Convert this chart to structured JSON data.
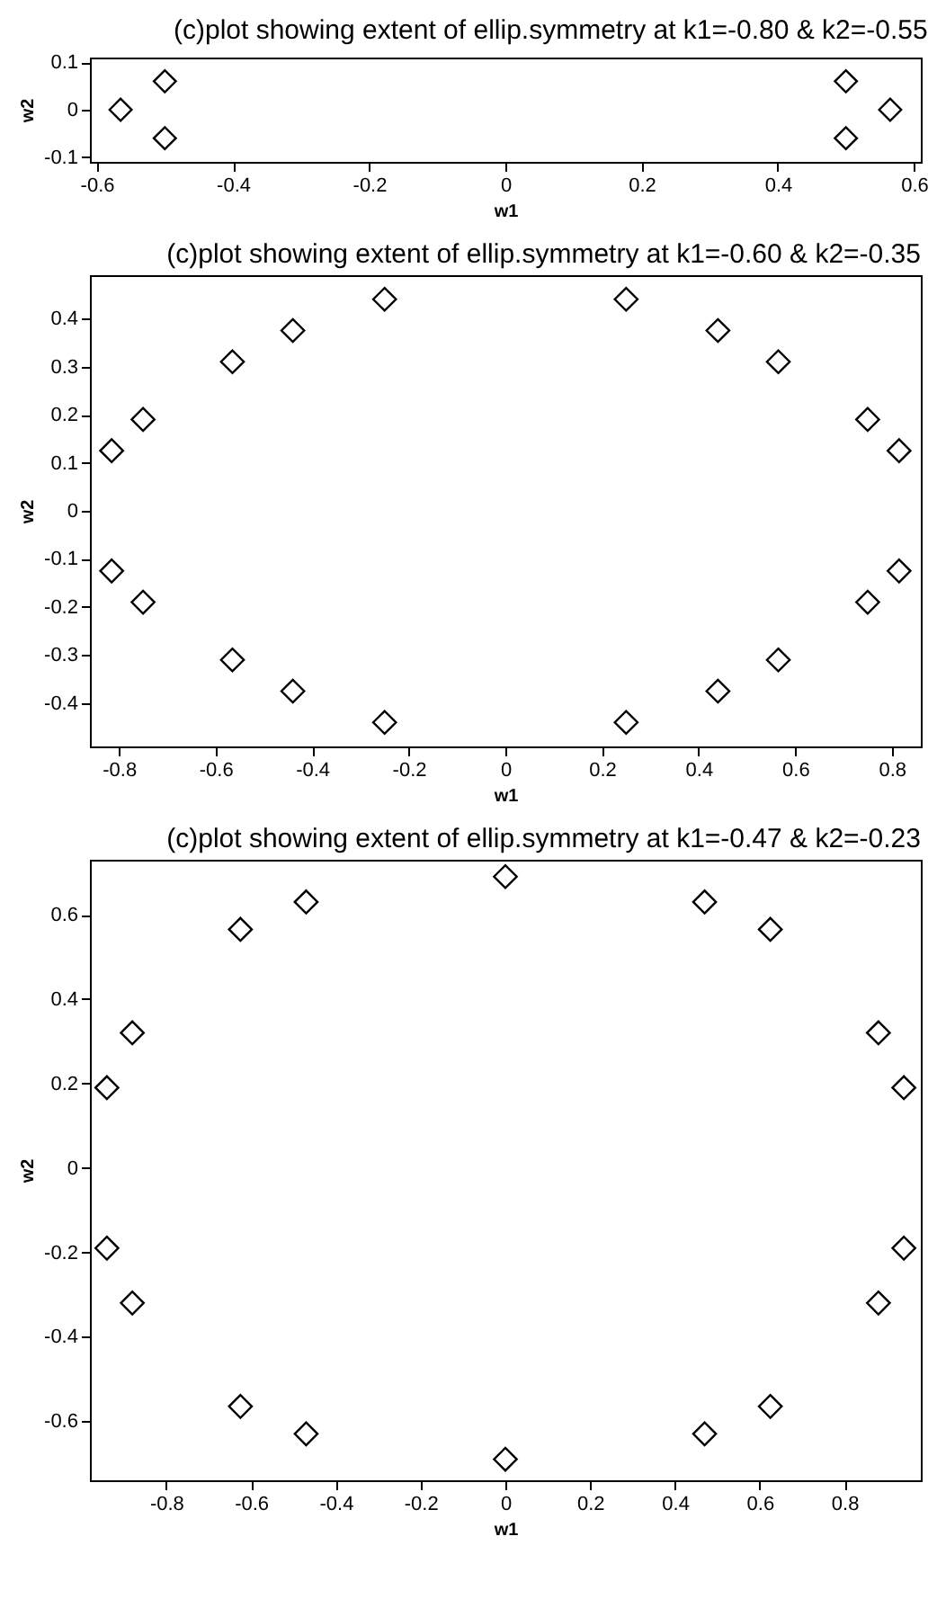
{
  "chart_data": [
    {
      "type": "scatter",
      "title": "(c)plot showing extent of ellip.symmetry at k1=-0.80 & k2=-0.55",
      "xlabel": "w1",
      "ylabel": "w2",
      "marker": "diamond",
      "grid": false,
      "xlim": [
        -0.61,
        0.61
      ],
      "ylim": [
        -0.11,
        0.11
      ],
      "xticks": [
        -0.6,
        -0.4,
        -0.2,
        0,
        0.2,
        0.4,
        0.6
      ],
      "yticks": [
        -0.1,
        0,
        0.1
      ],
      "series": [
        {
          "color": "#000000",
          "x": [
            -0.565,
            -0.5,
            -0.5,
            0.5,
            0.5,
            0.565
          ],
          "values": [
            0,
            0.06,
            -0.06,
            0.06,
            -0.06,
            0
          ]
        }
      ]
    },
    {
      "type": "scatter",
      "title": "(c)plot showing extent of ellip.symmetry at k1=-0.60 & k2=-0.35",
      "xlabel": "w1",
      "ylabel": "w2",
      "marker": "diamond",
      "grid": false,
      "xlim": [
        -0.86,
        0.86
      ],
      "ylim": [
        -0.49,
        0.49
      ],
      "xticks": [
        -0.8,
        -0.6,
        -0.4,
        -0.2,
        0,
        0.2,
        0.4,
        0.6,
        0.8
      ],
      "yticks": [
        -0.4,
        -0.3,
        -0.2,
        -0.1,
        0,
        0.1,
        0.2,
        0.3,
        0.4
      ],
      "series": [
        {
          "color": "#000000",
          "x": [
            -0.25,
            0.25,
            -0.44,
            0.44,
            -0.565,
            0.565,
            -0.75,
            0.75,
            -0.815,
            0.815,
            -0.25,
            0.25,
            -0.44,
            0.44,
            -0.565,
            0.565,
            -0.75,
            0.75,
            -0.815,
            0.815
          ],
          "values": [
            0.44,
            0.44,
            0.375,
            0.375,
            0.31,
            0.31,
            0.19,
            0.19,
            0.125,
            0.125,
            -0.44,
            -0.44,
            -0.375,
            -0.375,
            -0.31,
            -0.31,
            -0.19,
            -0.19,
            -0.125,
            -0.125
          ]
        }
      ]
    },
    {
      "type": "scatter",
      "title": "(c)plot showing extent of ellip.symmetry at k1=-0.47 & k2=-0.23",
      "xlabel": "w1",
      "ylabel": "w2",
      "marker": "diamond",
      "grid": false,
      "xlim": [
        -0.98,
        0.98
      ],
      "ylim": [
        -0.74,
        0.73
      ],
      "xticks": [
        -0.8,
        -0.6,
        -0.4,
        -0.2,
        0,
        0.2,
        0.4,
        0.6,
        0.8
      ],
      "yticks": [
        -0.6,
        -0.4,
        -0.2,
        0,
        0.2,
        0.4,
        0.6
      ],
      "series": [
        {
          "color": "#000000",
          "x": [
            0,
            -0.47,
            0.47,
            -0.625,
            0.625,
            -0.88,
            0.88,
            -0.94,
            0.94,
            0,
            -0.47,
            0.47,
            -0.625,
            0.625,
            -0.88,
            0.88,
            -0.94,
            0.94
          ],
          "values": [
            0.69,
            0.63,
            0.63,
            0.565,
            0.565,
            0.32,
            0.32,
            0.19,
            0.19,
            -0.69,
            -0.63,
            -0.63,
            -0.565,
            -0.565,
            -0.32,
            -0.32,
            -0.19,
            -0.19
          ]
        }
      ]
    }
  ]
}
